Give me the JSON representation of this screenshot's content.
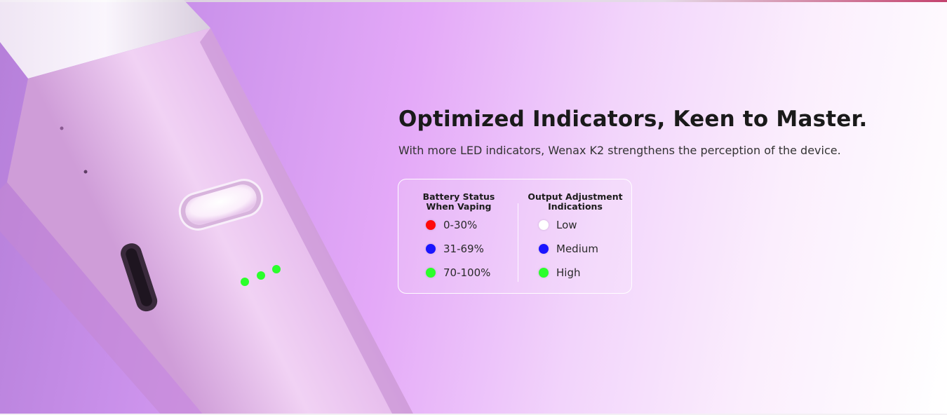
{
  "headline": "Optimized Indicators, Keen to Master.",
  "subline": "With more LED indicators, Wenax K2 strengthens the perception of the device.",
  "colors": {
    "red": "#ff0a0a",
    "blue": "#1a14ff",
    "green": "#2bff2b",
    "white": "#ffffff",
    "device_body": "#e3b7ec"
  },
  "battery": {
    "title_line1": "Battery Status",
    "title_line2": "When Vaping",
    "items": [
      {
        "label": "0-30%",
        "color": "#ff0a0a"
      },
      {
        "label": "31-69%",
        "color": "#1a14ff"
      },
      {
        "label": "70-100%",
        "color": "#2bff2b"
      }
    ]
  },
  "output": {
    "title_line1": "Output Adjustment",
    "title_line2": "Indications",
    "items": [
      {
        "label": "Low",
        "color": "#ffffff"
      },
      {
        "label": "Medium",
        "color": "#1a14ff"
      },
      {
        "label": "High",
        "color": "#2bff2b"
      }
    ]
  }
}
